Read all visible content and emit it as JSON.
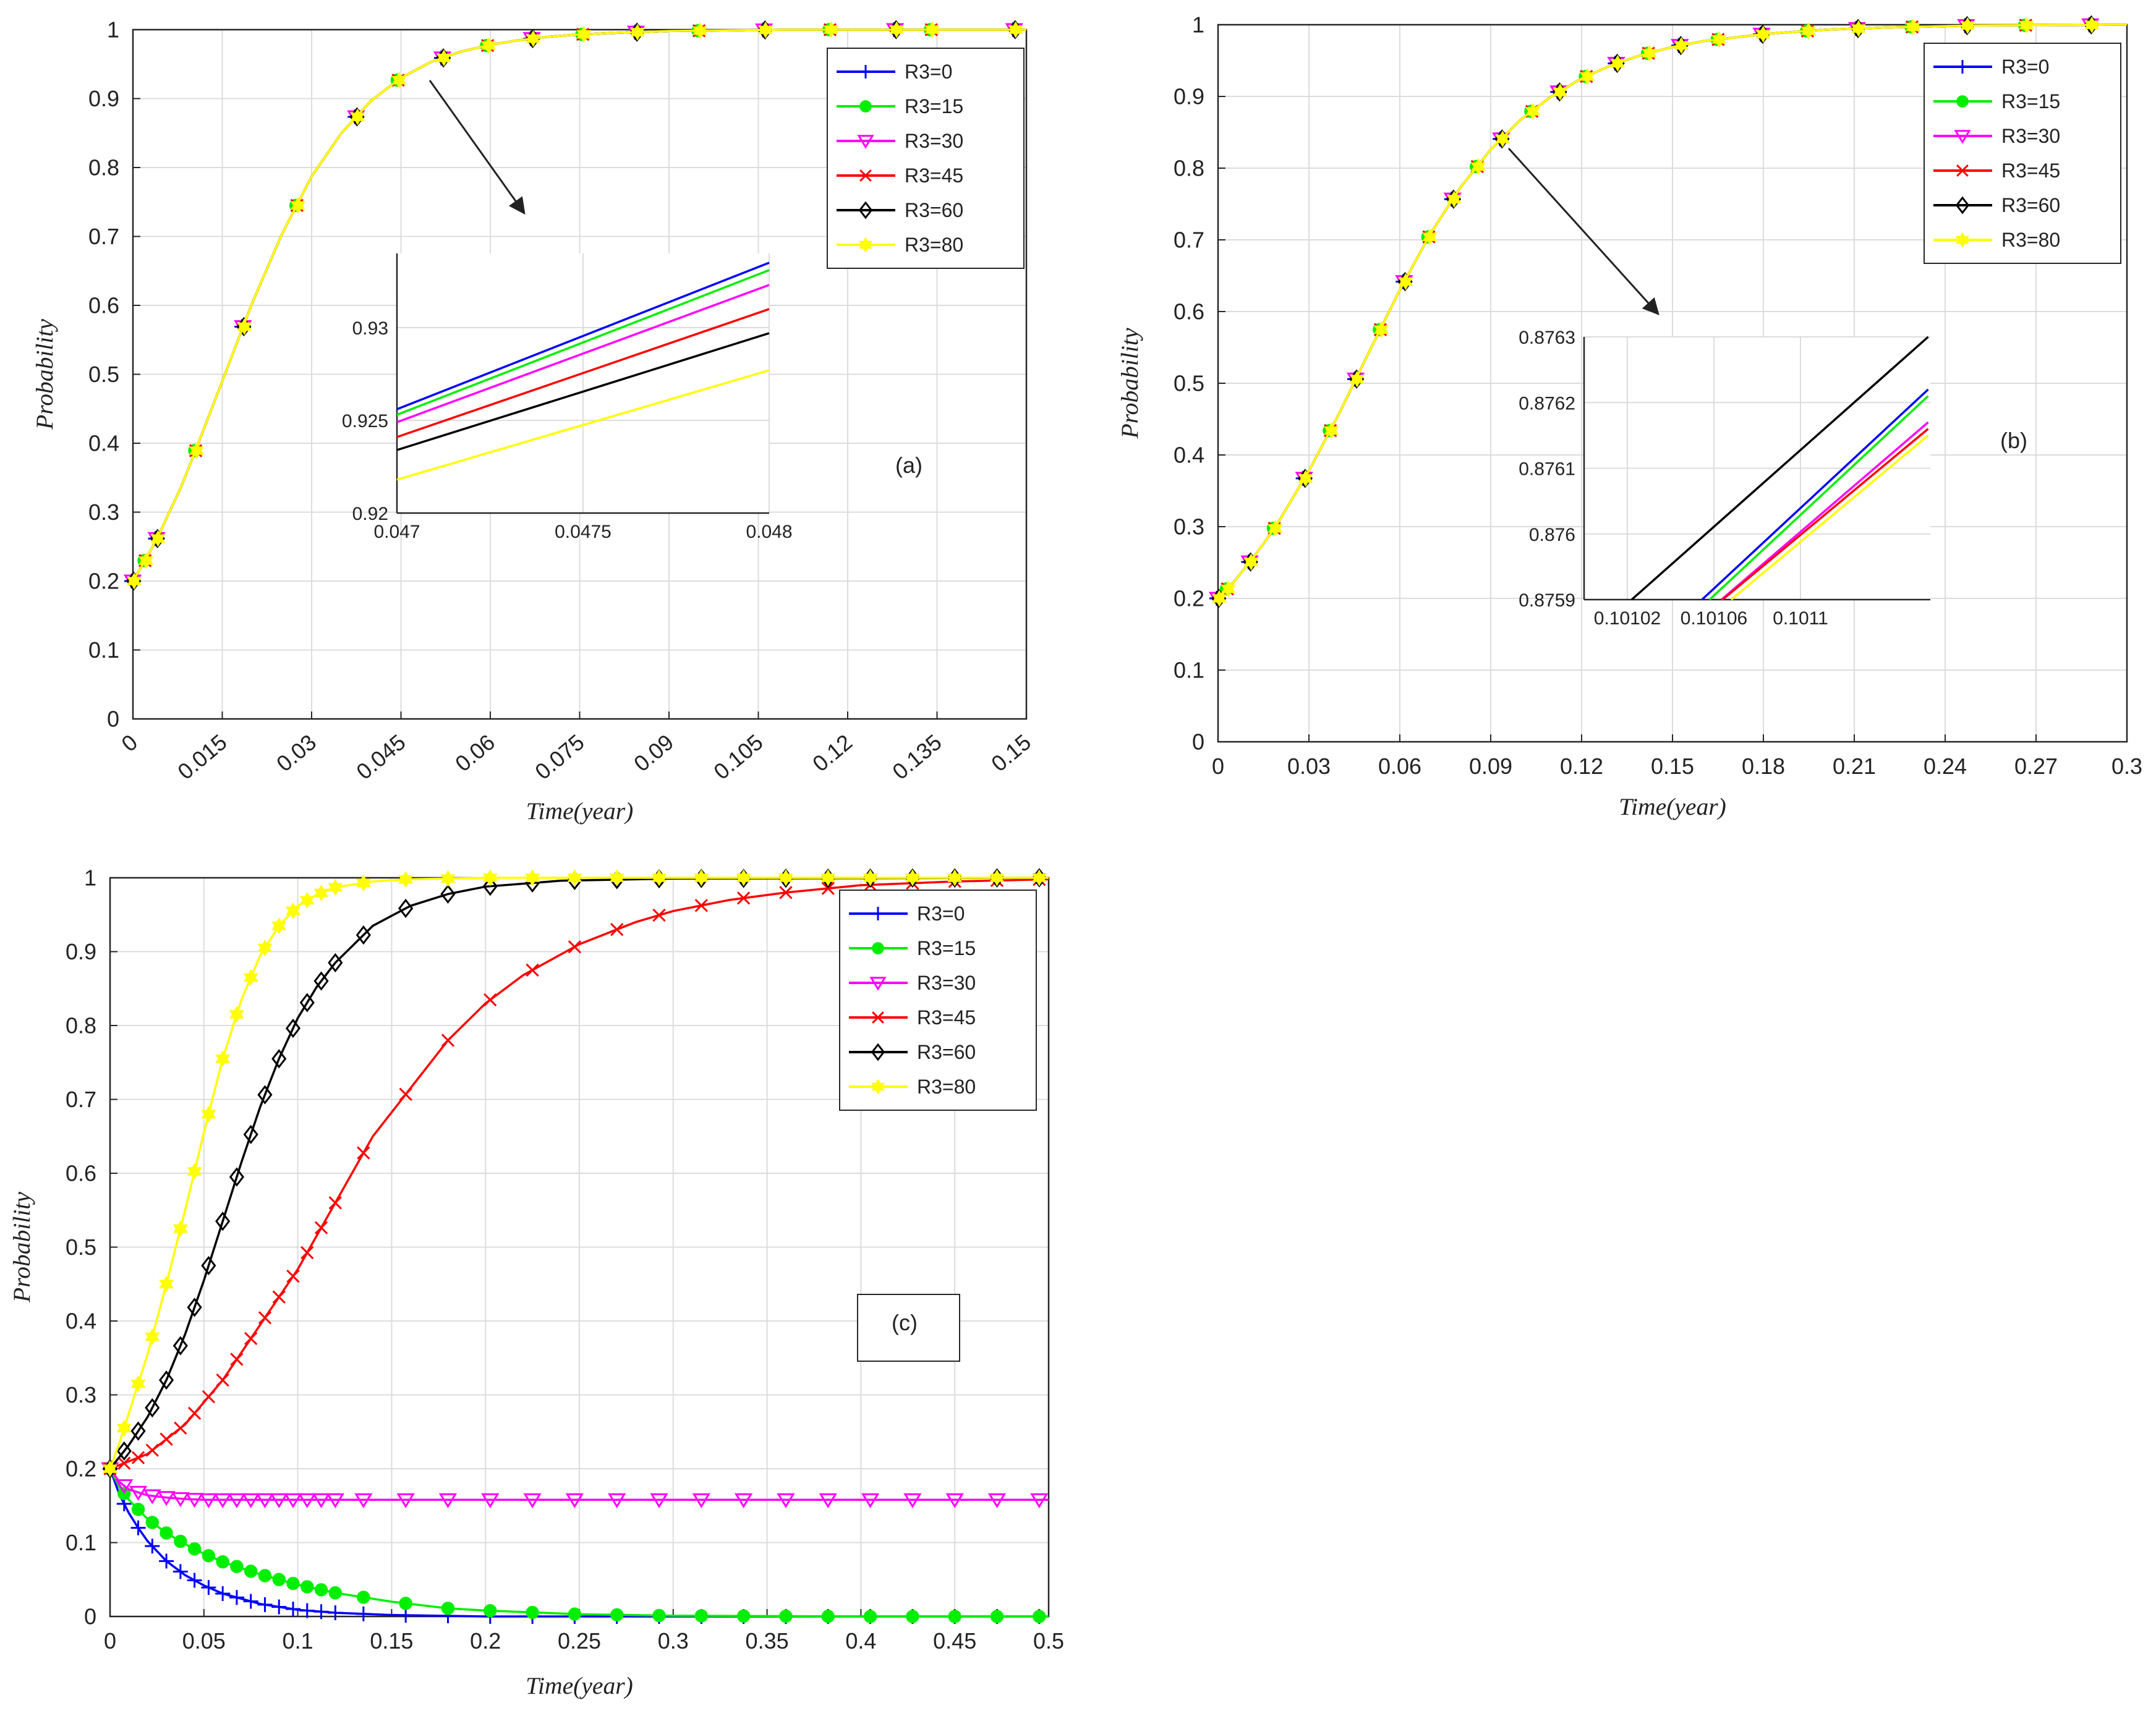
{
  "figure": {
    "panels": [
      "(a)",
      "(b)",
      "(c)"
    ]
  },
  "colors": {
    "R3=0": "#0000ff",
    "R3=15": "#00ee00",
    "R3=30": "#ff00ff",
    "R3=45": "#ff0000",
    "R3=60": "#000000",
    "R3=80": "#ffff00",
    "grid": "#dcdcdc",
    "axis": "#262626"
  },
  "chart_data": [
    {
      "id": "a",
      "type": "line",
      "panel_label": "(a)",
      "xlabel": "Time(year)",
      "ylabel": "Probability",
      "xlim": [
        0,
        0.15
      ],
      "ylim": [
        0,
        1
      ],
      "xticks": [
        0,
        0.015,
        0.03,
        0.045,
        0.06,
        0.075,
        0.09,
        0.105,
        0.12,
        0.135,
        0.15
      ],
      "xtick_labels": [
        "0",
        "0.015",
        "0.03",
        "0.045",
        "0.06",
        "0.075",
        "0.09",
        "0.105",
        "0.12",
        "0.135",
        "0.15"
      ],
      "yticks": [
        0,
        0.1,
        0.2,
        0.3,
        0.4,
        0.5,
        0.6,
        0.7,
        0.8,
        0.9,
        1
      ],
      "ytick_labels": [
        "0",
        "0.1",
        "0.2",
        "0.3",
        "0.4",
        "0.5",
        "0.6",
        "0.7",
        "0.8",
        "0.9",
        "1"
      ],
      "x_tick_rotation": -40,
      "legend": [
        "R3=0",
        "R3=15",
        "R3=30",
        "R3=45",
        "R3=60",
        "R3=80"
      ],
      "legend_location": "top-right",
      "series_x": [
        0,
        0.0015,
        0.003,
        0.0045,
        0.006,
        0.008,
        0.01,
        0.015,
        0.02,
        0.025,
        0.03,
        0.035,
        0.04,
        0.045,
        0.05,
        0.055,
        0.06,
        0.065,
        0.07,
        0.075,
        0.08,
        0.09,
        0.1,
        0.11,
        0.12,
        0.13,
        0.15
      ],
      "series_y": [
        0.2,
        0.222,
        0.245,
        0.27,
        0.298,
        0.335,
        0.378,
        0.49,
        0.603,
        0.703,
        0.787,
        0.85,
        0.897,
        0.93,
        0.953,
        0.968,
        0.978,
        0.985,
        0.99,
        0.993,
        0.995,
        0.998,
        0.999,
        1.0,
        1.0,
        1.0,
        1.0
      ],
      "marker_x": [
        0,
        0.002,
        0.004,
        0.0105,
        0.0185,
        0.0275,
        0.0375,
        0.0445,
        0.052,
        0.0595,
        0.067,
        0.0755,
        0.0845,
        0.095,
        0.106,
        0.117,
        0.128,
        0.134,
        0.148
      ],
      "series": [
        {
          "name": "R3=0",
          "marker": "plus"
        },
        {
          "name": "R3=15",
          "marker": "circle"
        },
        {
          "name": "R3=30",
          "marker": "triangle-down"
        },
        {
          "name": "R3=45",
          "marker": "x"
        },
        {
          "name": "R3=60",
          "marker": "diamond"
        },
        {
          "name": "R3=80",
          "marker": "star"
        }
      ],
      "inset": {
        "xlim": [
          0.047,
          0.048
        ],
        "ylim": [
          0.92,
          0.934
        ],
        "xticks": [
          0.047,
          0.0475,
          0.048
        ],
        "xtick_labels": [
          "0.047",
          "0.0475",
          "0.048"
        ],
        "yticks": [
          0.92,
          0.925,
          0.93
        ],
        "ytick_labels": [
          "0.92",
          "0.925",
          "0.93"
        ],
        "lines": [
          {
            "name": "R3=0",
            "y": [
              0.9256,
              0.9335
            ]
          },
          {
            "name": "R3=15",
            "y": [
              0.9253,
              0.9331
            ]
          },
          {
            "name": "R3=30",
            "y": [
              0.9249,
              0.9323
            ]
          },
          {
            "name": "R3=45",
            "y": [
              0.9241,
              0.931
            ]
          },
          {
            "name": "R3=60",
            "y": [
              0.9234,
              0.9297
            ]
          },
          {
            "name": "R3=80",
            "y": [
              0.9218,
              0.9277
            ]
          }
        ]
      },
      "annotation": "arrow from curve at x=0.049 pointing to zoom inset"
    },
    {
      "id": "b",
      "type": "line",
      "panel_label": "(b)",
      "xlabel": "Time(year)",
      "ylabel": "Probability",
      "xlim": [
        0,
        0.3
      ],
      "ylim": [
        0,
        1
      ],
      "xticks": [
        0,
        0.03,
        0.06,
        0.09,
        0.12,
        0.15,
        0.18,
        0.21,
        0.24,
        0.27,
        0.3
      ],
      "xtick_labels": [
        "0",
        "0.03",
        "0.06",
        "0.09",
        "0.12",
        "0.15",
        "0.18",
        "0.21",
        "0.24",
        "0.27",
        "0.3"
      ],
      "yticks": [
        0,
        0.1,
        0.2,
        0.3,
        0.4,
        0.5,
        0.6,
        0.7,
        0.8,
        0.9,
        1
      ],
      "ytick_labels": [
        "0",
        "0.1",
        "0.2",
        "0.3",
        "0.4",
        "0.5",
        "0.6",
        "0.7",
        "0.8",
        "0.9",
        "1"
      ],
      "x_tick_rotation": 0,
      "legend": [
        "R3=0",
        "R3=15",
        "R3=30",
        "R3=45",
        "R3=60",
        "R3=80"
      ],
      "legend_location": "top-right",
      "series_x": [
        0,
        0.005,
        0.01,
        0.015,
        0.02,
        0.03,
        0.04,
        0.05,
        0.06,
        0.07,
        0.08,
        0.09,
        0.1,
        0.11,
        0.12,
        0.13,
        0.14,
        0.15,
        0.16,
        0.18,
        0.2,
        0.22,
        0.25,
        0.3
      ],
      "series_y": [
        0.2,
        0.222,
        0.248,
        0.276,
        0.307,
        0.378,
        0.458,
        0.545,
        0.63,
        0.708,
        0.773,
        0.826,
        0.868,
        0.9,
        0.925,
        0.944,
        0.958,
        0.969,
        0.977,
        0.987,
        0.993,
        0.996,
        0.999,
        1.0
      ],
      "marker_x": [
        0,
        0.003,
        0.0105,
        0.0185,
        0.0285,
        0.037,
        0.0455,
        0.0535,
        0.0615,
        0.0695,
        0.0775,
        0.0855,
        0.0935,
        0.1035,
        0.1125,
        0.1215,
        0.1315,
        0.142,
        0.1525,
        0.165,
        0.1795,
        0.1945,
        0.211,
        0.229,
        0.247,
        0.2665,
        0.288
      ],
      "series": [
        {
          "name": "R3=0",
          "marker": "plus"
        },
        {
          "name": "R3=15",
          "marker": "circle"
        },
        {
          "name": "R3=30",
          "marker": "triangle-down"
        },
        {
          "name": "R3=45",
          "marker": "x"
        },
        {
          "name": "R3=60",
          "marker": "diamond"
        },
        {
          "name": "R3=80",
          "marker": "star"
        }
      ],
      "inset": {
        "xlim": [
          0.101,
          0.10116
        ],
        "ylim": [
          0.8759,
          0.8763
        ],
        "xticks": [
          0.10102,
          0.10106,
          0.1011
        ],
        "xtick_labels": [
          "0.10102",
          "0.10106",
          "0.1011"
        ],
        "yticks": [
          0.8759,
          0.876,
          0.8761,
          0.8762,
          0.8763
        ],
        "ytick_labels": [
          "0.8759",
          "0.876",
          "0.8761",
          "0.8762",
          "0.8763"
        ],
        "lines": [
          {
            "name": "R3=60",
            "x": [
              0.101022,
              0.101159
            ],
            "y": [
              0.8759,
              0.8763
            ]
          },
          {
            "name": "R3=0",
            "x": [
              0.1010545,
              0.101159
            ],
            "y": [
              0.8759,
              0.87622
            ]
          },
          {
            "name": "R3=15",
            "x": [
              0.101058,
              0.101159
            ],
            "y": [
              0.8759,
              0.87621
            ]
          },
          {
            "name": "R3=30",
            "x": [
              0.1010635,
              0.101159
            ],
            "y": [
              0.8759,
              0.87617
            ]
          },
          {
            "name": "R3=45",
            "x": [
              0.101064,
              0.101159
            ],
            "y": [
              0.8759,
              0.87616
            ]
          },
          {
            "name": "R3=80",
            "x": [
              0.101068,
              0.101159
            ],
            "y": [
              0.8759,
              0.87615
            ]
          }
        ]
      },
      "annotation": "arrow from curve at x=0.096 pointing to zoom inset"
    },
    {
      "id": "c",
      "type": "line",
      "panel_label": "(c)",
      "xlabel": "Time(year)",
      "ylabel": "Probability",
      "xlim": [
        0,
        0.5
      ],
      "ylim": [
        0,
        1
      ],
      "xticks": [
        0,
        0.05,
        0.1,
        0.15,
        0.2,
        0.25,
        0.3,
        0.35,
        0.4,
        0.45,
        0.5
      ],
      "xtick_labels": [
        "0",
        "0.05",
        "0.1",
        "0.15",
        "0.2",
        "0.25",
        "0.3",
        "0.35",
        "0.4",
        "0.45",
        "0.5"
      ],
      "yticks": [
        0,
        0.1,
        0.2,
        0.3,
        0.4,
        0.5,
        0.6,
        0.7,
        0.8,
        0.9,
        1
      ],
      "ytick_labels": [
        "0",
        "0.1",
        "0.2",
        "0.3",
        "0.4",
        "0.5",
        "0.6",
        "0.7",
        "0.8",
        "0.9",
        "1"
      ],
      "x_tick_rotation": 0,
      "legend": [
        "R3=0",
        "R3=15",
        "R3=30",
        "R3=45",
        "R3=60",
        "R3=80"
      ],
      "legend_location": "top-right",
      "series": [
        {
          "name": "R3=0",
          "marker": "plus",
          "x": [
            0,
            0.005,
            0.01,
            0.015,
            0.02,
            0.03,
            0.04,
            0.05,
            0.06,
            0.08,
            0.1,
            0.12,
            0.15,
            0.2,
            0.25,
            0.3,
            0.4,
            0.5
          ],
          "y": [
            0.2,
            0.165,
            0.14,
            0.12,
            0.102,
            0.075,
            0.056,
            0.042,
            0.031,
            0.017,
            0.009,
            0.005,
            0.002,
            0.0,
            0.0,
            0.0,
            0.0,
            0.0
          ]
        },
        {
          "name": "R3=15",
          "marker": "circle",
          "x": [
            0,
            0.005,
            0.01,
            0.02,
            0.03,
            0.04,
            0.05,
            0.06,
            0.08,
            0.1,
            0.12,
            0.15,
            0.18,
            0.2,
            0.25,
            0.3,
            0.4,
            0.5
          ],
          "y": [
            0.2,
            0.175,
            0.158,
            0.132,
            0.113,
            0.098,
            0.085,
            0.074,
            0.057,
            0.043,
            0.032,
            0.02,
            0.011,
            0.008,
            0.003,
            0.001,
            0.0,
            0.0
          ]
        },
        {
          "name": "R3=30",
          "marker": "triangle-down",
          "x": [
            0,
            0.005,
            0.01,
            0.02,
            0.03,
            0.04,
            0.05,
            0.07,
            0.1,
            0.5
          ],
          "y": [
            0.2,
            0.182,
            0.172,
            0.164,
            0.161,
            0.159,
            0.158,
            0.158,
            0.158,
            0.158
          ]
        },
        {
          "name": "R3=45",
          "marker": "x",
          "x": [
            0,
            0.02,
            0.04,
            0.06,
            0.08,
            0.1,
            0.12,
            0.14,
            0.16,
            0.18,
            0.2,
            0.22,
            0.25,
            0.28,
            0.3,
            0.33,
            0.36,
            0.4,
            0.45,
            0.5
          ],
          "y": [
            0.2,
            0.22,
            0.26,
            0.32,
            0.395,
            0.47,
            0.56,
            0.65,
            0.715,
            0.78,
            0.83,
            0.868,
            0.91,
            0.94,
            0.955,
            0.97,
            0.98,
            0.99,
            0.995,
            0.998
          ]
        },
        {
          "name": "R3=60",
          "marker": "diamond",
          "x": [
            0,
            0.01,
            0.02,
            0.03,
            0.04,
            0.05,
            0.06,
            0.07,
            0.08,
            0.09,
            0.1,
            0.11,
            0.12,
            0.14,
            0.16,
            0.18,
            0.2,
            0.24,
            0.3,
            0.5
          ],
          "y": [
            0.2,
            0.232,
            0.27,
            0.32,
            0.382,
            0.455,
            0.535,
            0.615,
            0.69,
            0.755,
            0.81,
            0.852,
            0.885,
            0.935,
            0.962,
            0.978,
            0.988,
            0.996,
            0.999,
            1.0
          ]
        },
        {
          "name": "R3=80",
          "marker": "star",
          "x": [
            0,
            0.005,
            0.01,
            0.02,
            0.03,
            0.04,
            0.05,
            0.06,
            0.07,
            0.08,
            0.09,
            0.1,
            0.11,
            0.12,
            0.14,
            0.16,
            0.2,
            0.3,
            0.5
          ],
          "y": [
            0.2,
            0.235,
            0.275,
            0.355,
            0.45,
            0.55,
            0.655,
            0.755,
            0.835,
            0.895,
            0.935,
            0.962,
            0.977,
            0.987,
            0.995,
            0.998,
            1.0,
            1.0,
            1.0
          ]
        }
      ],
      "marker_step": 0.01
    }
  ]
}
